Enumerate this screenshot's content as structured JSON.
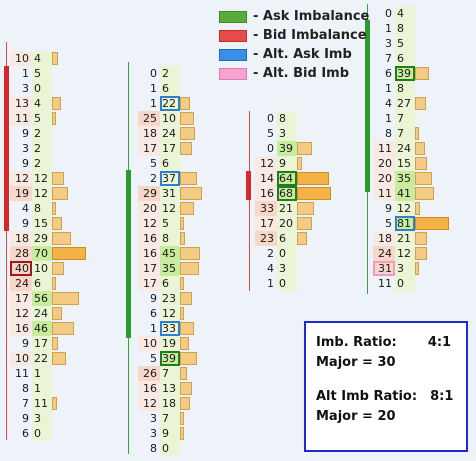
{
  "legend": [
    {
      "label": "- Ask Imbalance",
      "color": "#5aac3a",
      "border": "#3f8a26"
    },
    {
      "label": "- Bid Imbalance",
      "color": "#e84a4a",
      "border": "#c42e2e"
    },
    {
      "label": "- Alt. Ask Imb",
      "color": "#3a8ee6",
      "border": "#1e6cc2"
    },
    {
      "label": "- Alt. Bid Imb",
      "color": "#f5a3cf",
      "border": "#e07cb4"
    }
  ],
  "info": {
    "imb_ratio_label": "Imb. Ratio:",
    "imb_ratio_value": "4:1",
    "major1": "Major = 30",
    "alt_ratio_label": "Alt Imb Ratio:",
    "alt_ratio_value": "8:1",
    "major2": "Major = 20"
  },
  "columns": [
    {
      "rows": [
        {
          "bid": "10",
          "ask": "4",
          "bar": 0.18,
          "bidc": "bg"
        },
        {
          "bid": "1",
          "ask": "5",
          "bar": 0
        },
        {
          "bid": "3",
          "ask": "0",
          "bar": 0
        },
        {
          "bid": "13",
          "ask": "4",
          "bar": 0.25,
          "bidc": "bg"
        },
        {
          "bid": "11",
          "ask": "5",
          "bar": 0.1,
          "bidc": "bg"
        },
        {
          "bid": "9",
          "ask": "2",
          "bar": 0
        },
        {
          "bid": "3",
          "ask": "2",
          "bar": 0
        },
        {
          "bid": "9",
          "ask": "2",
          "bar": 0
        },
        {
          "bid": "12",
          "ask": "12",
          "bar": 0.36,
          "bidc": "bg"
        },
        {
          "bid": "19",
          "ask": "12",
          "bar": 0.48,
          "bidc": "pink"
        },
        {
          "bid": "4",
          "ask": "8",
          "bar": 0.05
        },
        {
          "bid": "9",
          "ask": "15",
          "bar": 0.3
        },
        {
          "bid": "18",
          "ask": "29",
          "bar": 0.55,
          "bidc": "bg"
        },
        {
          "bid": "28",
          "ask": "70",
          "bar": 1.0,
          "bidc": "pink",
          "askc": "green",
          "barhi": true
        },
        {
          "bid": "40",
          "ask": "10",
          "bar": 0.36,
          "bidc": "pink",
          "sel": "bid"
        },
        {
          "bid": "24",
          "ask": "6",
          "bar": 0.1,
          "bidc": "pink"
        },
        {
          "bid": "17",
          "ask": "56",
          "bar": 0.78,
          "bidc": "bg",
          "askc": "green"
        },
        {
          "bid": "12",
          "ask": "24",
          "bar": 0.3,
          "bidc": "bg"
        },
        {
          "bid": "16",
          "ask": "46",
          "bar": 0.66,
          "bidc": "bg",
          "askc": "green"
        },
        {
          "bid": "9",
          "ask": "17",
          "bar": 0.18
        },
        {
          "bid": "10",
          "ask": "22",
          "bar": 0.4,
          "bidc": "bg"
        },
        {
          "bid": "11",
          "ask": "1",
          "bar": 0
        },
        {
          "bid": "8",
          "ask": "1",
          "bar": 0
        },
        {
          "bid": "7",
          "ask": "11",
          "bar": 0.15
        },
        {
          "bid": "9",
          "ask": "3",
          "bar": 0
        },
        {
          "bid": "6",
          "ask": "0",
          "bar": 0
        }
      ]
    },
    {
      "rows": [
        {
          "bid": "0",
          "ask": "2",
          "bar": 0
        },
        {
          "bid": "1",
          "ask": "6",
          "bar": 0
        },
        {
          "bid": "1",
          "ask": "22",
          "bar": 0.28,
          "sel": "askalt"
        },
        {
          "bid": "25",
          "ask": "10",
          "bar": 0.4,
          "bidc": "pink"
        },
        {
          "bid": "18",
          "ask": "24",
          "bar": 0.45,
          "bidc": "bg"
        },
        {
          "bid": "17",
          "ask": "17",
          "bar": 0.35,
          "bidc": "bg"
        },
        {
          "bid": "5",
          "ask": "6",
          "bar": 0
        },
        {
          "bid": "2",
          "ask": "37",
          "bar": 0.5,
          "sel": "askalt"
        },
        {
          "bid": "29",
          "ask": "31",
          "bar": 0.65,
          "bidc": "pink"
        },
        {
          "bid": "20",
          "ask": "12",
          "bar": 0.4,
          "bidc": "bg"
        },
        {
          "bid": "12",
          "ask": "5",
          "bar": 0.08,
          "bidc": "bg"
        },
        {
          "bid": "16",
          "ask": "8",
          "bar": 0.15,
          "bidc": "bg"
        },
        {
          "bid": "16",
          "ask": "45",
          "bar": 0.6,
          "bidc": "bg",
          "askc": "green"
        },
        {
          "bid": "17",
          "ask": "35",
          "bar": 0.55,
          "bidc": "bg",
          "askc": "green"
        },
        {
          "bid": "17",
          "ask": "6",
          "bar": 0.08,
          "bidc": "bg"
        },
        {
          "bid": "9",
          "ask": "23",
          "bar": 0.35
        },
        {
          "bid": "6",
          "ask": "12",
          "bar": 0.12
        },
        {
          "bid": "1",
          "ask": "33",
          "bar": 0.42,
          "sel": "askalt"
        },
        {
          "bid": "10",
          "ask": "19",
          "bar": 0.25,
          "bidc": "bg"
        },
        {
          "bid": "5",
          "ask": "39",
          "bar": 0.5,
          "askc": "green",
          "sel": "ask"
        },
        {
          "bid": "26",
          "ask": "7",
          "bar": 0.2,
          "bidc": "pink"
        },
        {
          "bid": "16",
          "ask": "13",
          "bar": 0.35,
          "bidc": "bg"
        },
        {
          "bid": "12",
          "ask": "18",
          "bar": 0.3,
          "bidc": "bg"
        },
        {
          "bid": "3",
          "ask": "7",
          "bar": 0.05
        },
        {
          "bid": "3",
          "ask": "9",
          "bar": 0.05
        },
        {
          "bid": "8",
          "ask": "0",
          "bar": 0
        }
      ]
    },
    {
      "rows": [
        {
          "bid": "0",
          "ask": "8",
          "bar": 0
        },
        {
          "bid": "5",
          "ask": "3",
          "bar": 0
        },
        {
          "bid": "0",
          "ask": "39",
          "bar": 0.45,
          "askc": "green"
        },
        {
          "bid": "12",
          "ask": "9",
          "bar": 0.15,
          "bidc": "bg"
        },
        {
          "bid": "14",
          "ask": "64",
          "bar": 0.95,
          "bidc": "bg",
          "askc": "green",
          "sel": "ask",
          "barhi": true
        },
        {
          "bid": "16",
          "ask": "68",
          "bar": 1.0,
          "bidc": "bg",
          "askc": "green",
          "sel": "ask",
          "barhi": true
        },
        {
          "bid": "33",
          "ask": "21",
          "bar": 0.5,
          "bidc": "pink"
        },
        {
          "bid": "17",
          "ask": "20",
          "bar": 0.45,
          "bidc": "bg"
        },
        {
          "bid": "23",
          "ask": "6",
          "bar": 0.3,
          "bidc": "pink"
        },
        {
          "bid": "2",
          "ask": "0",
          "bar": 0
        },
        {
          "bid": "4",
          "ask": "3",
          "bar": 0
        },
        {
          "bid": "1",
          "ask": "0",
          "bar": 0
        }
      ]
    },
    {
      "rows": [
        {
          "bid": "0",
          "ask": "4",
          "bar": 0
        },
        {
          "bid": "1",
          "ask": "8",
          "bar": 0
        },
        {
          "bid": "3",
          "ask": "5",
          "bar": 0
        },
        {
          "bid": "7",
          "ask": "6",
          "bar": 0
        },
        {
          "bid": "6",
          "ask": "39",
          "bar": 0.4,
          "askc": "green",
          "sel": "ask"
        },
        {
          "bid": "1",
          "ask": "8",
          "bar": 0
        },
        {
          "bid": "4",
          "ask": "27",
          "bar": 0.32
        },
        {
          "bid": "1",
          "ask": "7",
          "bar": 0
        },
        {
          "bid": "8",
          "ask": "7",
          "bar": 0.05
        },
        {
          "bid": "11",
          "ask": "24",
          "bar": 0.3,
          "bidc": "bg"
        },
        {
          "bid": "20",
          "ask": "15",
          "bar": 0.35,
          "bidc": "bg"
        },
        {
          "bid": "20",
          "ask": "35",
          "bar": 0.5,
          "bidc": "bg",
          "askc": "green"
        },
        {
          "bid": "11",
          "ask": "41",
          "bar": 0.55,
          "bidc": "bg",
          "askc": "green"
        },
        {
          "bid": "9",
          "ask": "12",
          "bar": 0.15
        },
        {
          "bid": "5",
          "ask": "81",
          "bar": 1.0,
          "askc": "green",
          "sel": "askalt",
          "barhi": true
        },
        {
          "bid": "18",
          "ask": "21",
          "bar": 0.35,
          "bidc": "bg"
        },
        {
          "bid": "24",
          "ask": "12",
          "bar": 0.35,
          "bidc": "pink"
        },
        {
          "bid": "31",
          "ask": "3",
          "bar": 0.1,
          "bidc": "pink",
          "sel": "bidalt"
        },
        {
          "bid": "11",
          "ask": "0",
          "bar": 0
        }
      ]
    }
  ]
}
